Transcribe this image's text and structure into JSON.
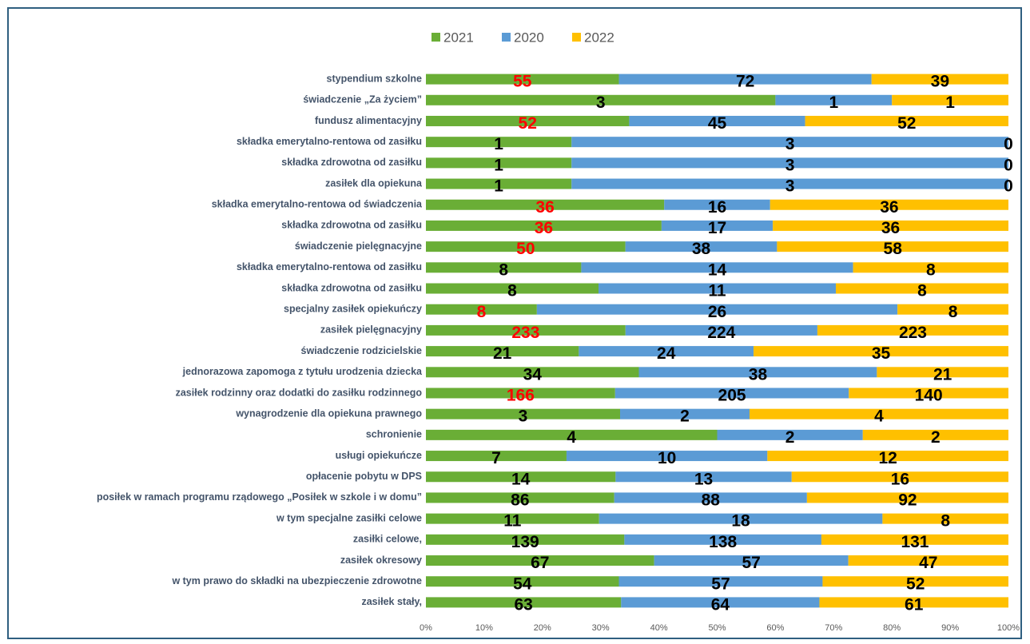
{
  "chart_data": {
    "type": "bar",
    "orientation": "horizontal",
    "stacking": "percent",
    "grid": false,
    "legend": "top",
    "categories": [
      "stypendium szkolne",
      "świadczenie „Za życiem”",
      "fundusz alimentacyjny",
      "składka emerytalno-rentowa od zasiłku",
      "składka zdrowotna od zasiłku",
      "zasiłek dla opiekuna",
      "składka emerytalno-rentowa od świadczenia",
      "składka zdrowotna od zasiłku",
      "świadczenie pielęgnacyjne",
      "składka emerytalno-rentowa od zasiłku",
      "składka zdrowotna od zasiłku",
      "specjalny zasiłek opiekuńczy",
      "zasiłek pielęgnacyjny",
      "świadczenie rodzicielskie",
      "jednorazowa zapomoga z tytułu urodzenia dziecka",
      "zasiłek rodzinny oraz dodatki do zasiłku rodzinnego",
      "wynagrodzenie dla opiekuna prawnego",
      "schronienie",
      "usługi opiekuńcze",
      "opłacenie pobytu w DPS",
      "posiłek w ramach programu rządowego „Posiłek w szkole i w domu”",
      "w tym specjalne zasiłki celowe",
      "zasiłki celowe,",
      "zasiłek okresowy",
      "w tym prawo do składki na ubezpieczenie zdrowotne",
      "zasiłek stały,"
    ],
    "label_color": "#000000",
    "series": [
      {
        "name": "2021",
        "color": "#6aae36",
        "values": [
          55,
          3,
          52,
          1,
          1,
          1,
          36,
          36,
          50,
          8,
          8,
          8,
          233,
          21,
          34,
          166,
          3,
          4,
          7,
          14,
          86,
          11,
          139,
          67,
          54,
          63
        ],
        "label_colors": [
          "#ff0000",
          "#000000",
          "#ff0000",
          "#000000",
          "#000000",
          "#000000",
          "#ff0000",
          "#ff0000",
          "#ff0000",
          "#000000",
          "#000000",
          "#ff0000",
          "#ff0000",
          "#000000",
          "#000000",
          "#ff0000",
          "#000000",
          "#000000",
          "#000000",
          "#000000",
          "#000000",
          "#000000",
          "#000000",
          "#000000",
          "#000000",
          "#000000"
        ]
      },
      {
        "name": "2020",
        "color": "#5b9bd5",
        "values": [
          72,
          1,
          45,
          3,
          3,
          3,
          16,
          17,
          38,
          14,
          11,
          26,
          224,
          24,
          38,
          205,
          2,
          2,
          10,
          13,
          88,
          18,
          138,
          57,
          57,
          64
        ]
      },
      {
        "name": "2022",
        "color": "#ffc000",
        "values": [
          39,
          1,
          52,
          0,
          0,
          0,
          36,
          36,
          58,
          8,
          8,
          8,
          223,
          35,
          21,
          140,
          4,
          2,
          12,
          16,
          92,
          8,
          131,
          47,
          52,
          61
        ]
      }
    ],
    "xlim": [
      0,
      100
    ],
    "xticks": [
      {
        "value": 0,
        "label": "0%"
      },
      {
        "value": 10,
        "label": "10%"
      },
      {
        "value": 20,
        "label": "20%"
      },
      {
        "value": 30,
        "label": "30%"
      },
      {
        "value": 40,
        "label": "40%"
      },
      {
        "value": 50,
        "label": "50%"
      },
      {
        "value": 60,
        "label": "60%"
      },
      {
        "value": 70,
        "label": "70%"
      },
      {
        "value": 80,
        "label": "80%"
      },
      {
        "value": 90,
        "label": "90%"
      },
      {
        "value": 100,
        "label": "100%"
      }
    ]
  }
}
